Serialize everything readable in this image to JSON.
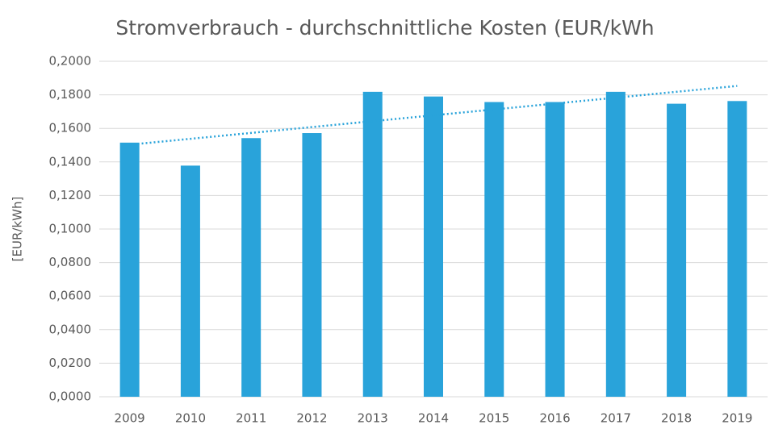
{
  "chart_data": {
    "type": "bar",
    "title": "Stromverbrauch - durchschnittliche Kosten (EUR/kWh",
    "y_label": "[EUR/kWh]",
    "categories": [
      "2009",
      "2010",
      "2011",
      "2012",
      "2013",
      "2014",
      "2015",
      "2016",
      "2017",
      "2018",
      "2019"
    ],
    "values": [
      0.1515,
      0.1378,
      0.1542,
      0.1572,
      0.1818,
      0.179,
      0.1757,
      0.1757,
      0.1818,
      0.1747,
      0.1763
    ],
    "color": "#29a3da",
    "trendline": {
      "type": "linear",
      "color": "#29a3da"
    },
    "ylim": [
      0,
      0.2
    ],
    "yticks": [
      {
        "value": 0,
        "label": "0,0000"
      },
      {
        "value": 0.02,
        "label": "0,0200"
      },
      {
        "value": 0.04,
        "label": "0,0400"
      },
      {
        "value": 0.06,
        "label": "0,0600"
      },
      {
        "value": 0.08,
        "label": "0,0800"
      },
      {
        "value": 0.1,
        "label": "0,1000"
      },
      {
        "value": 0.12,
        "label": "0,1200"
      },
      {
        "value": 0.14,
        "label": "0,1400"
      },
      {
        "value": 0.16,
        "label": "0,1600"
      },
      {
        "value": 0.18,
        "label": "0,1800"
      },
      {
        "value": 0.2,
        "label": "0,2000"
      }
    ],
    "grid": true
  }
}
